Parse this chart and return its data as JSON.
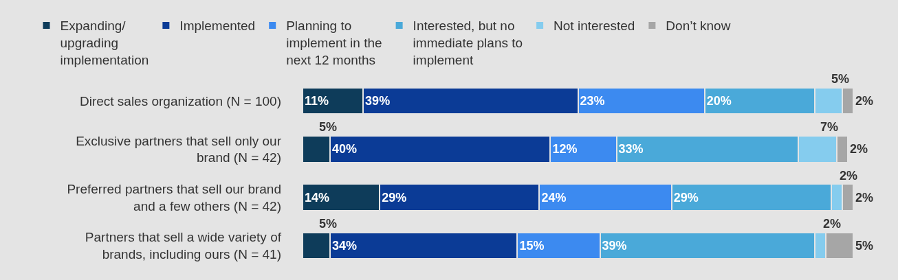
{
  "chart_data": {
    "type": "bar",
    "orientation": "horizontal",
    "stacked": true,
    "legend": "top",
    "grid": false,
    "categories": [
      "Direct sales organization (N = 100)",
      "Exclusive partners that sell only our brand (N = 42)",
      "Preferred partners that sell our brand and a few others (N = 42)",
      "Partners that sell a wide variety of brands, including ours (N = 41)"
    ],
    "series": [
      {
        "name": "Expanding/ upgrading implementation",
        "color": "#0e3c5a",
        "values": [
          11,
          5,
          14,
          5
        ],
        "value_labels": [
          "11%",
          "5%",
          "14%",
          "5%"
        ]
      },
      {
        "name": "Implemented",
        "color": "#0b3b96",
        "values": [
          39,
          40,
          29,
          34
        ],
        "value_labels": [
          "39%",
          "40%",
          "29%",
          "34%"
        ]
      },
      {
        "name": "Planning to implement in the next 12 months",
        "color": "#3c8af0",
        "values": [
          23,
          12,
          24,
          15
        ],
        "value_labels": [
          "23%",
          "12%",
          "24%",
          "15%"
        ]
      },
      {
        "name": "Interested, but no immediate plans to implement",
        "color": "#4aa9d9",
        "values": [
          20,
          33,
          29,
          39
        ],
        "value_labels": [
          "20%",
          "33%",
          "29%",
          "39%"
        ]
      },
      {
        "name": "Not interested",
        "color": "#85ccee",
        "values": [
          5,
          7,
          2,
          2
        ],
        "value_labels": [
          "5%",
          "7%",
          "2%",
          "2%"
        ]
      },
      {
        "name": "Don’t know",
        "color": "#a6a6a6",
        "values": [
          2,
          2,
          2,
          5
        ],
        "value_labels": [
          "2%",
          "2%",
          "2%",
          "5%"
        ]
      }
    ]
  }
}
